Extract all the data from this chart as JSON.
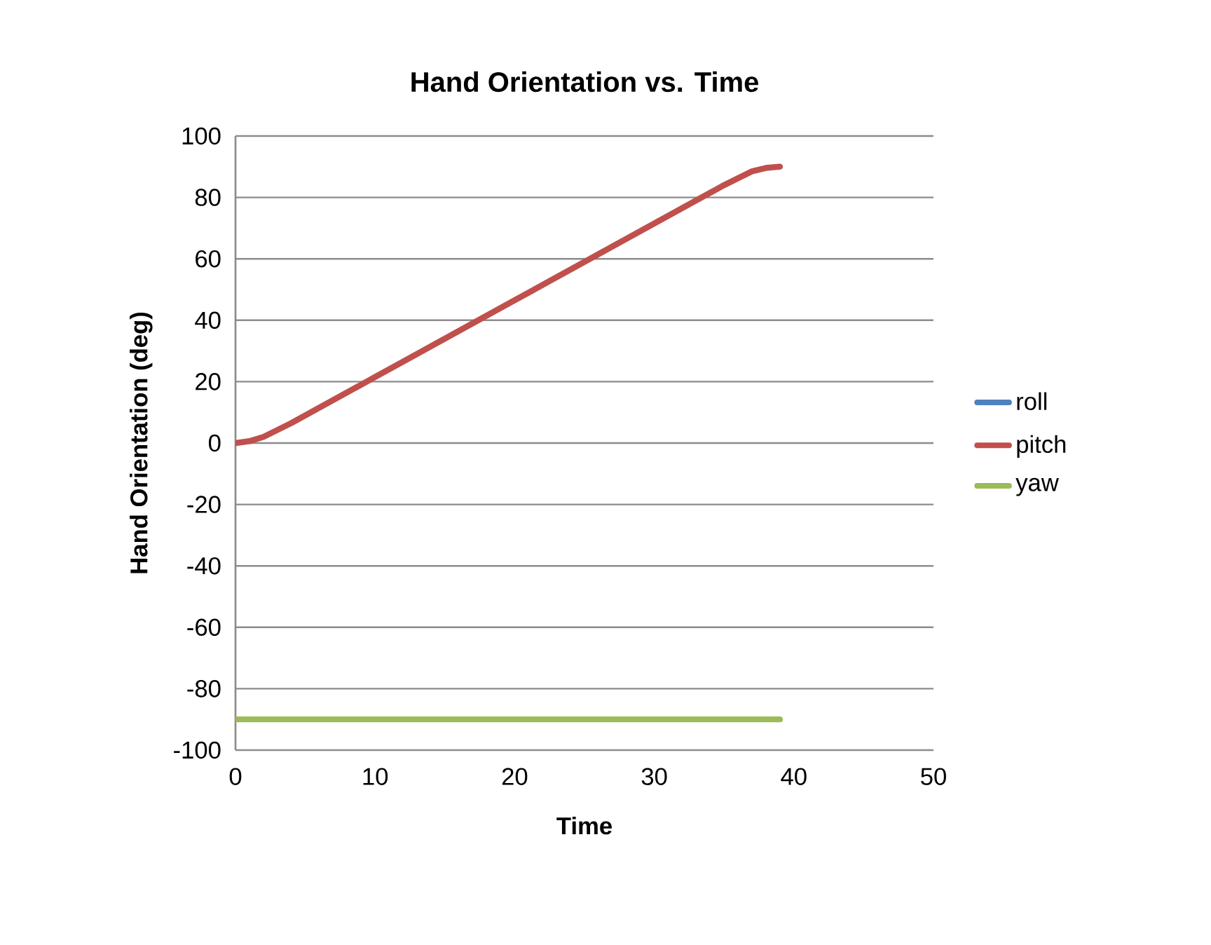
{
  "chart_data": {
    "type": "line",
    "title": "Hand Orientation vs. Time",
    "xlabel": "Time",
    "ylabel": "Hand Orientation  (deg)",
    "xlim": [
      0,
      50
    ],
    "xticks": [
      0,
      10,
      20,
      30,
      40,
      50
    ],
    "ylim": [
      -100,
      100
    ],
    "yticks": [
      -100,
      -80,
      -60,
      -40,
      -20,
      0,
      20,
      40,
      60,
      80,
      100
    ],
    "grid": "y",
    "legend": "right",
    "series": [
      {
        "name": "roll",
        "color": "#4f81bd"
      },
      {
        "name": "pitch",
        "color": "#c0504d",
        "x": [
          0,
          1,
          2,
          4,
          10,
          20,
          30,
          35,
          37,
          38,
          39
        ],
        "values": [
          0,
          0.6,
          2,
          6.5,
          21.5,
          46.5,
          71.5,
          84,
          88.5,
          89.6,
          90
        ]
      },
      {
        "name": "yaw",
        "color": "#9bbb59",
        "x": [
          0,
          39
        ],
        "values": [
          -90,
          -90
        ]
      }
    ]
  }
}
